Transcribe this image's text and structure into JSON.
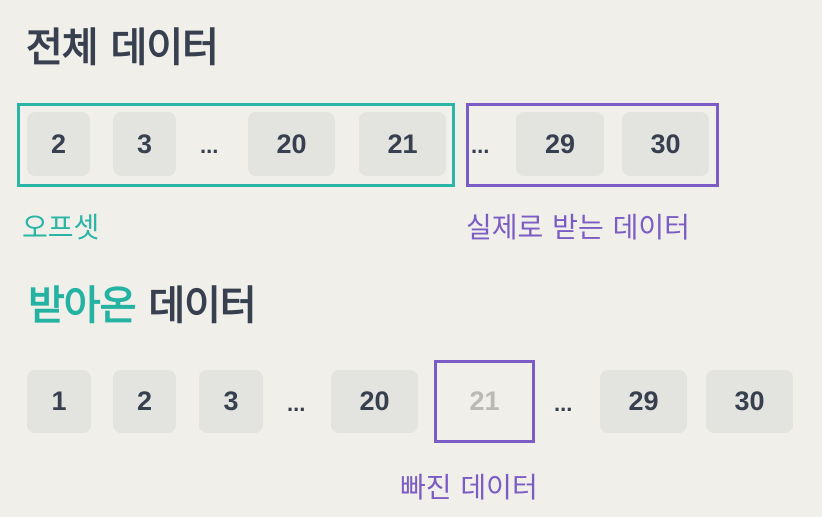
{
  "section_full": {
    "title": "전체 데이터",
    "cells": [
      "2",
      "3",
      "20",
      "21",
      "29",
      "30"
    ],
    "ellipsis": "...",
    "offset_label": "오프셋",
    "received_label": "실제로 받는 데이터"
  },
  "section_received": {
    "title_accent": "받아온",
    "title_rest": " 데이터",
    "cells": [
      "1",
      "2",
      "3",
      "20",
      "21",
      "29",
      "30"
    ],
    "ellipsis": "...",
    "missing_label": "빠진 데이터"
  },
  "colors": {
    "background": "#f0efea",
    "text": "#38404f",
    "teal": "#2bb5a6",
    "purple": "#7a5cc4",
    "cell_bg": "#e3e4df",
    "missing_text": "#b9bab6"
  }
}
